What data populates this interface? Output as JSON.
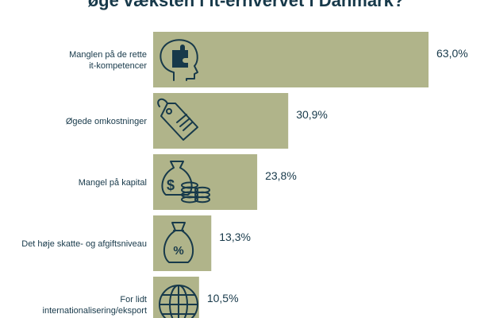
{
  "colors": {
    "bar": "#b0b48a",
    "text": "#17394a",
    "background": "#ffffff"
  },
  "chart_data": {
    "type": "bar",
    "orientation": "horizontal",
    "title": "øge væksten i it-erhvervet i Danmark?",
    "categories": [
      "Manglen på de rette\nit-kompetencer",
      "Øgede omkostninger",
      "Mangel på kapital",
      "Det høje skatte- og afgiftsniveau",
      "For lidt\ninternationalisering/eksport"
    ],
    "values": [
      63.0,
      30.9,
      23.8,
      13.3,
      10.5
    ],
    "value_labels": [
      "63,0%",
      "30,9%",
      "23,8%",
      "13,3%",
      "10,5%"
    ],
    "icons": [
      "brain-puzzle-icon",
      "price-tag-icon",
      "money-coins-icon",
      "percent-bag-icon",
      "globe-icon"
    ],
    "unit": "%",
    "xlim": [
      0,
      63.0
    ],
    "grid": false,
    "legend": "none"
  }
}
